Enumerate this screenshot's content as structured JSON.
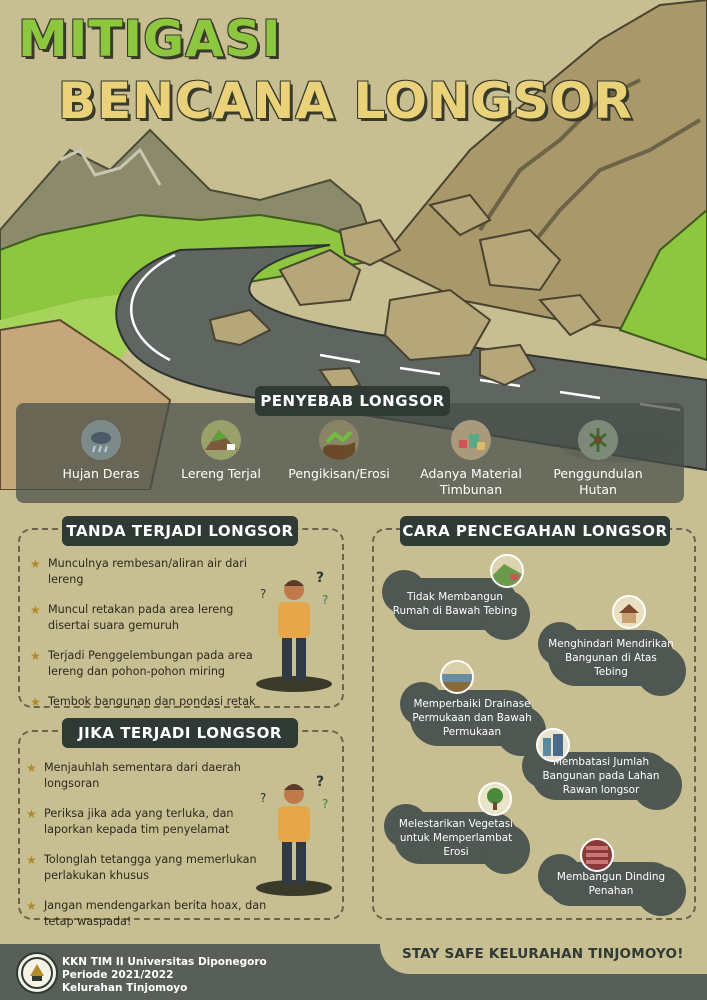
{
  "title": {
    "line1": "MITIGASI",
    "line2": "BENCANA LONGSOR"
  },
  "causes": {
    "heading": "PENYEBAB LONGSOR",
    "items": [
      {
        "label": "Hujan Deras",
        "icon": "rain-cloud-icon"
      },
      {
        "label": "Lereng Terjal",
        "icon": "steep-slope-icon"
      },
      {
        "label": "Pengikisan/Erosi",
        "icon": "erosion-icon"
      },
      {
        "label": "Adanya Material Timbunan",
        "icon": "debris-pile-icon"
      },
      {
        "label": "Penggundulan Hutan",
        "icon": "deforestation-icon"
      }
    ]
  },
  "signs": {
    "heading": "TANDA TERJADI LONGSOR",
    "items": [
      "Munculnya rembesan/aliran air dari lereng",
      "Muncul retakan pada area lereng disertai suara gemuruh",
      "Terjadi Penggelembungan pada area lereng dan pohon-pohon miring",
      "Tembok bangunan dan pondasi retak"
    ]
  },
  "during": {
    "heading": "JIKA TERJADI LONGSOR",
    "items": [
      "Menjauhlah sementara dari daerah longsoran",
      "Periksa jika ada yang terluka, dan laporkan kepada tim penyelamat",
      "Tolonglah tetangga yang memerlukan perlakukan khusus",
      "Jangan mendengarkan berita hoax, dan tetap waspada!"
    ]
  },
  "prevention": {
    "heading": "CARA PENCEGAHAN LONGSOR",
    "items": [
      {
        "label": "Tidak Membangun Rumah di Bawah Tebing",
        "icon": "cliff-house-icon"
      },
      {
        "label": "Menghindari Mendirikan Bangunan di Atas Tebing",
        "icon": "house-icon"
      },
      {
        "label": "Memperbaiki Drainase Permukaan dan Bawah Permukaan",
        "icon": "drainage-icon"
      },
      {
        "label": "Membatasi Jumlah Bangunan pada Lahan Rawan longsor",
        "icon": "buildings-icon"
      },
      {
        "label": "Melestarikan Vegetasi untuk Memperlambat Erosi",
        "icon": "tree-icon"
      },
      {
        "label": "Membangun Dinding Penahan",
        "icon": "retaining-wall-icon"
      }
    ]
  },
  "footer": {
    "line1": "KKN TIM II Universitas Diponegoro",
    "line2": "Periode 2021/2022",
    "line3": "Kelurahan Tinjomoyo",
    "slogan": "STAY SAFE KELURAHAN TINJOMOYO!"
  },
  "colors": {
    "background": "#c7bf92",
    "dark": "#2f3a34",
    "green": "#8dc63f",
    "yellow": "#e9d27a",
    "bubble": "#4f5752"
  }
}
